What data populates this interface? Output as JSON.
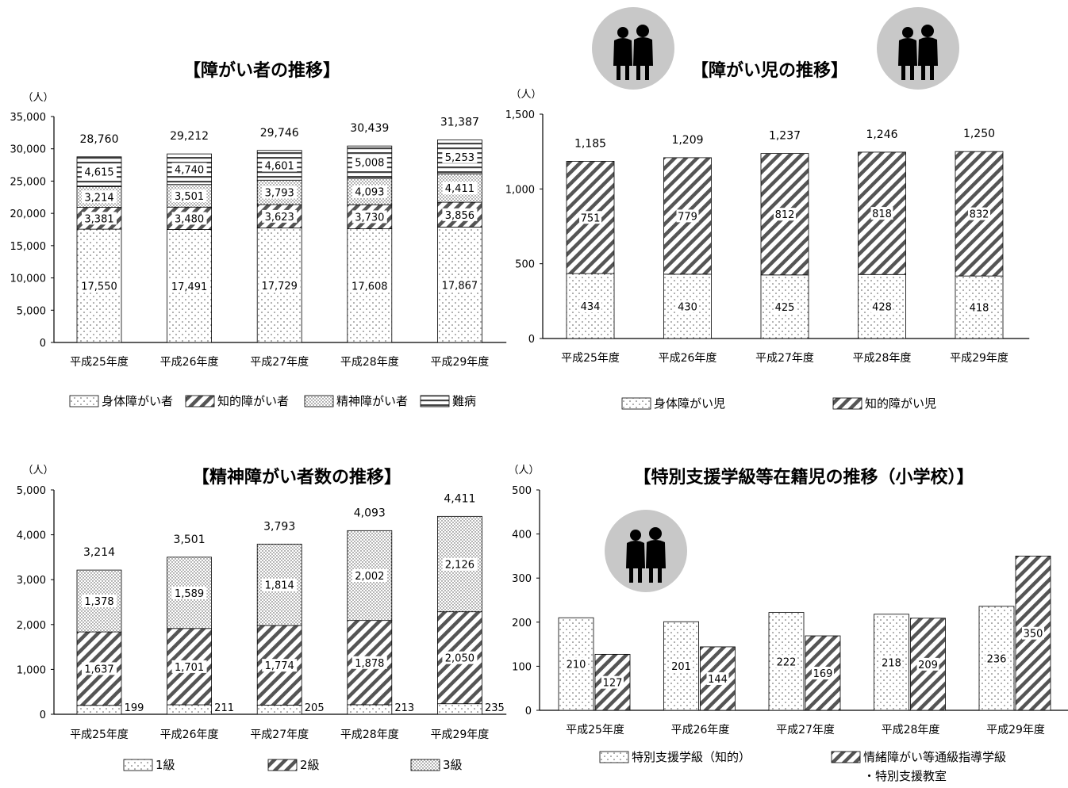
{
  "colors": {
    "stroke": "#000000",
    "axis": "#000000",
    "icon_bg": "#c8c8c8",
    "icon_fg": "#000000"
  },
  "icons": [
    "silhouette-pair-icon",
    "silhouette-pair-icon",
    "silhouette-pair-icon"
  ],
  "chart_data": [
    {
      "type": "bar",
      "stacked": true,
      "title": "【障がい者の推移】",
      "unit": "（人）",
      "categories": [
        "平成25年度",
        "平成26年度",
        "平成27年度",
        "平成28年度",
        "平成29年度"
      ],
      "ylim": [
        0,
        35000
      ],
      "yticks": [
        0,
        5000,
        10000,
        15000,
        20000,
        25000,
        30000,
        35000
      ],
      "ytick_labels": [
        "0",
        "5,000",
        "10,000",
        "15,000",
        "20,000",
        "25,000",
        "30,000",
        "35,000"
      ],
      "series": [
        {
          "name": "身体障がい者",
          "pattern": "dots",
          "values": [
            17550,
            17491,
            17729,
            17608,
            17867
          ],
          "labels": [
            "17,550",
            "17,491",
            "17,729",
            "17,608",
            "17,867"
          ]
        },
        {
          "name": "知的障がい者",
          "pattern": "diag",
          "values": [
            3381,
            3480,
            3623,
            3730,
            3856
          ],
          "labels": [
            "3,381",
            "3,480",
            "3,623",
            "3,730",
            "3,856"
          ]
        },
        {
          "name": "精神障がい者",
          "pattern": "dense",
          "values": [
            3214,
            3501,
            3793,
            4093,
            4411
          ],
          "labels": [
            "3,214",
            "3,501",
            "3,793",
            "4,093",
            "4,411"
          ]
        },
        {
          "name": "難病",
          "pattern": "horiz",
          "values": [
            4615,
            4740,
            4601,
            5008,
            5253
          ],
          "labels": [
            "4,615",
            "4,740",
            "4,601",
            "5,008",
            "5,253"
          ]
        }
      ],
      "totals": [
        "28,760",
        "29,212",
        "29,746",
        "30,439",
        "31,387"
      ],
      "legend": "bottom",
      "grid": false
    },
    {
      "type": "bar",
      "stacked": true,
      "title": "【障がい児の推移】",
      "unit": "（人）",
      "categories": [
        "平成25年度",
        "平成26年度",
        "平成27年度",
        "平成28年度",
        "平成29年度"
      ],
      "ylim": [
        0,
        1500
      ],
      "yticks": [
        0,
        500,
        1000,
        1500
      ],
      "ytick_labels": [
        "0",
        "500",
        "1,000",
        "1,500"
      ],
      "series": [
        {
          "name": "身体障がい児",
          "pattern": "dots",
          "values": [
            434,
            430,
            425,
            428,
            418
          ],
          "labels": [
            "434",
            "430",
            "425",
            "428",
            "418"
          ]
        },
        {
          "name": "知的障がい児",
          "pattern": "diag",
          "values": [
            751,
            779,
            812,
            818,
            832
          ],
          "labels": [
            "751",
            "779",
            "812",
            "818",
            "832"
          ]
        }
      ],
      "totals": [
        "1,185",
        "1,209",
        "1,237",
        "1,246",
        "1,250"
      ],
      "legend": "bottom",
      "grid": false
    },
    {
      "type": "bar",
      "stacked": true,
      "title": "【精神障がい者数の推移】",
      "unit": "（人）",
      "categories": [
        "平成25年度",
        "平成26年度",
        "平成27年度",
        "平成28年度",
        "平成29年度"
      ],
      "ylim": [
        0,
        5000
      ],
      "yticks": [
        0,
        1000,
        2000,
        3000,
        4000,
        5000
      ],
      "ytick_labels": [
        "0",
        "1,000",
        "2,000",
        "3,000",
        "4,000",
        "5,000"
      ],
      "series": [
        {
          "name": "1級",
          "pattern": "dots",
          "values": [
            199,
            211,
            205,
            213,
            235
          ],
          "labels": [
            "199",
            "211",
            "205",
            "213",
            "235"
          ]
        },
        {
          "name": "2級",
          "pattern": "diag",
          "values": [
            1637,
            1701,
            1774,
            1878,
            2050
          ],
          "labels": [
            "1,637",
            "1,701",
            "1,774",
            "1,878",
            "2,050"
          ]
        },
        {
          "name": "3級",
          "pattern": "dense",
          "values": [
            1378,
            1589,
            1814,
            2002,
            2126
          ],
          "labels": [
            "1,378",
            "1,589",
            "1,814",
            "2,002",
            "2,126"
          ]
        }
      ],
      "totals": [
        "3,214",
        "3,501",
        "3,793",
        "4,093",
        "4,411"
      ],
      "legend": "bottom",
      "grid": false
    },
    {
      "type": "bar",
      "stacked": false,
      "title": "【特別支援学級等在籍児の推移（小学校）】",
      "unit": "（人）",
      "categories": [
        "平成25年度",
        "平成26年度",
        "平成27年度",
        "平成28年度",
        "平成29年度"
      ],
      "ylim": [
        0,
        500
      ],
      "yticks": [
        0,
        100,
        200,
        300,
        400,
        500
      ],
      "ytick_labels": [
        "0",
        "100",
        "200",
        "300",
        "400",
        "500"
      ],
      "series": [
        {
          "name": "特別支援学級（知的）",
          "pattern": "dots",
          "values": [
            210,
            201,
            222,
            218,
            236
          ],
          "labels": [
            "210",
            "201",
            "222",
            "218",
            "236"
          ]
        },
        {
          "name": "情緒障がい等通級指導学級",
          "name_line2": "・特別支援教室",
          "pattern": "diag",
          "values": [
            127,
            144,
            169,
            209,
            350
          ],
          "labels": [
            "127",
            "144",
            "169",
            "209",
            "350"
          ]
        }
      ],
      "legend": "bottom",
      "grid": false
    }
  ]
}
